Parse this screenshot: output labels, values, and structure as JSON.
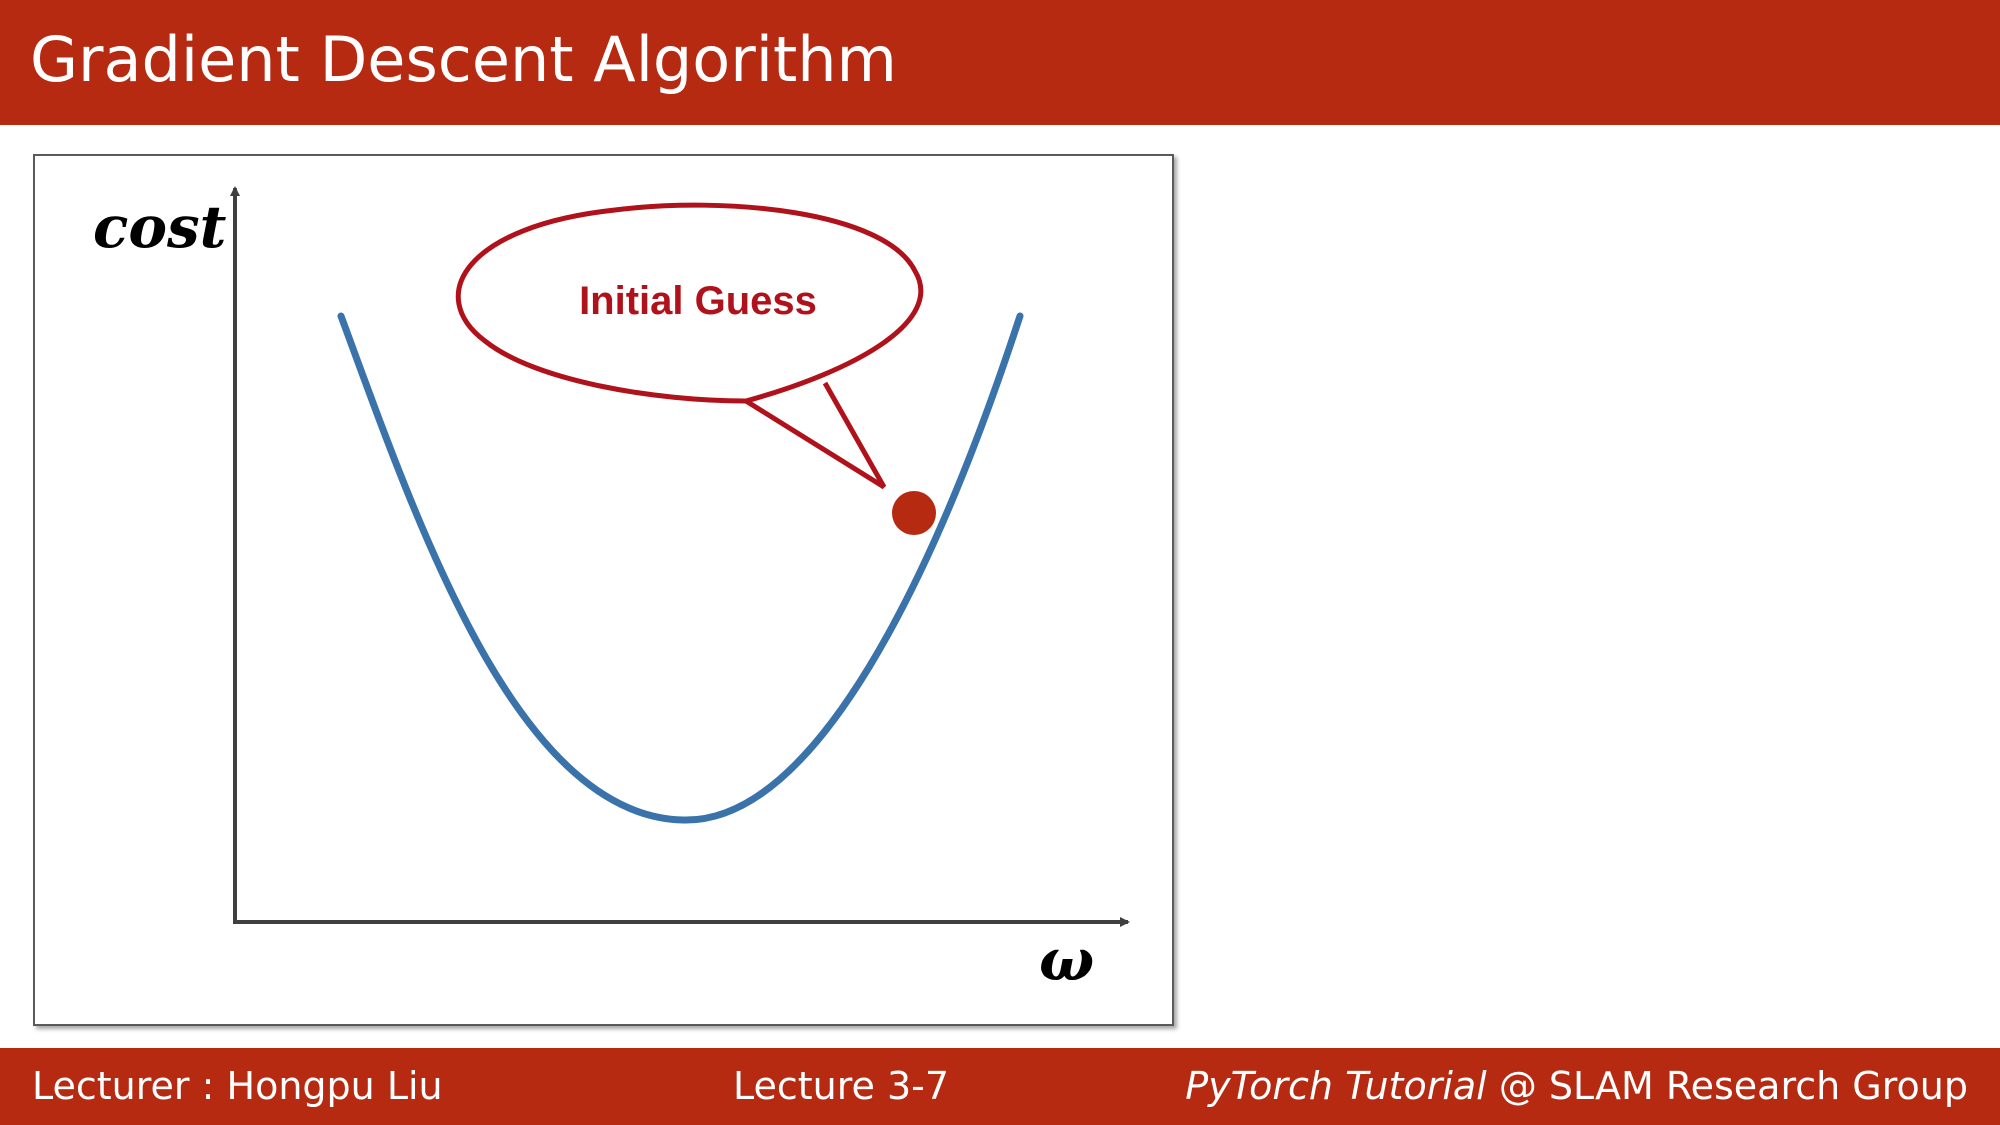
{
  "slide": {
    "title": "Gradient Descent Algorithm"
  },
  "figure": {
    "y_axis_label": "cost",
    "x_axis_label": "ω",
    "callout_text": "Initial Guess",
    "colors": {
      "curve": "#3a72aa",
      "point": "#b72a12",
      "callout": "#b0121c",
      "axis": "#404040"
    }
  },
  "footer": {
    "lecturer": "Lecturer : Hongpu Liu",
    "lecture": "Lecture 3-7",
    "course": "PyTorch Tutorial",
    "group": " @ SLAM Research Group"
  },
  "colors": {
    "brand": "#b72a12"
  }
}
